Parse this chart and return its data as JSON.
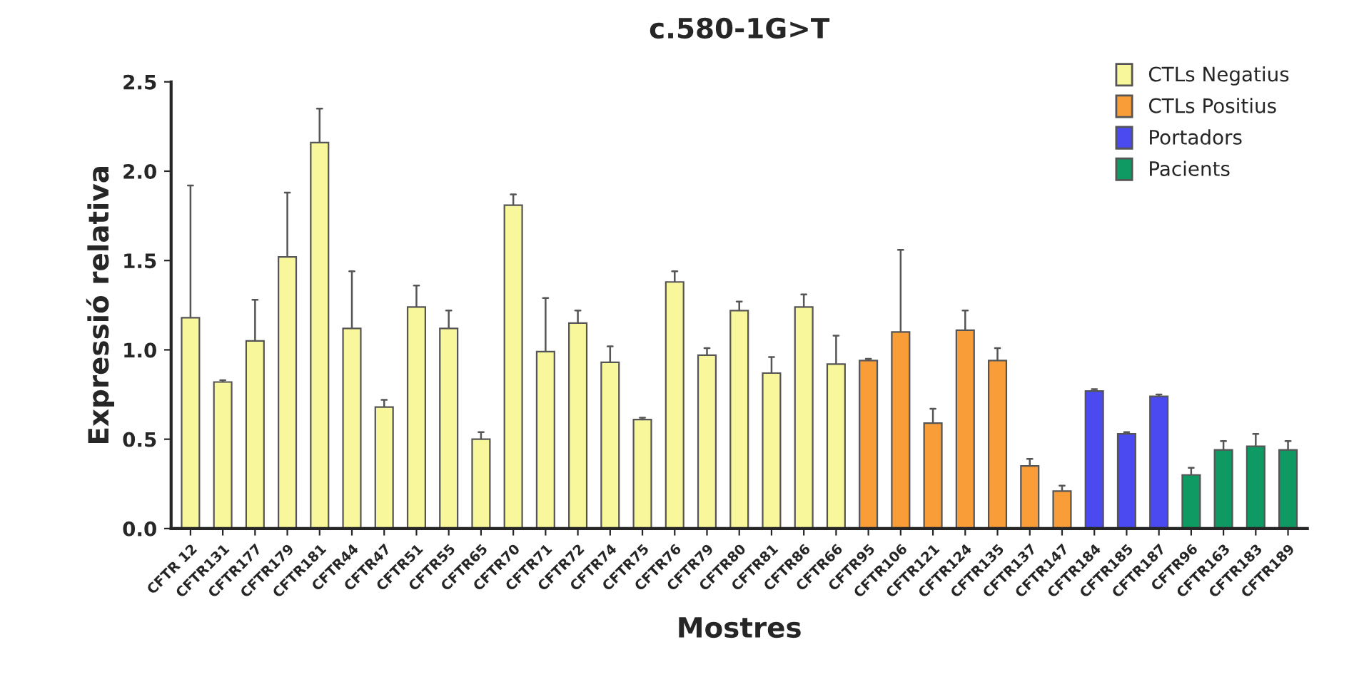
{
  "chart_data": {
    "type": "bar",
    "title": "c.580-1G>T",
    "xlabel": "Mostres",
    "ylabel": "Expressió relativa",
    "categories": [
      "CFTR 12",
      "CFTR131",
      "CFTR177",
      "CFTR179",
      "CFTR181",
      "CFTR44",
      "CFTR47",
      "CFTR51",
      "CFTR55",
      "CFTR65",
      "CFTR70",
      "CFTR71",
      "CFTR72",
      "CFTR74",
      "CFTR75",
      "CFTR76",
      "CFTR79",
      "CFTR80",
      "CFTR81",
      "CFTR86",
      "CFTR66",
      "CFTR95",
      "CFTR106",
      "CFTR121",
      "CFTR124",
      "CFTR135",
      "CFTR137",
      "CFTR147",
      "CFTR184",
      "CFTR185",
      "CFTR187",
      "CFTR96",
      "CFTR163",
      "CFTR183",
      "CFTR189"
    ],
    "series": [
      {
        "name": "CTLs Negatius",
        "color": "#f8f79c",
        "values": [
          1.18,
          0.82,
          1.05,
          1.52,
          2.16,
          1.12,
          0.68,
          1.24,
          1.12,
          0.5,
          1.81,
          0.99,
          1.15,
          0.93,
          0.61,
          1.38,
          0.97,
          1.22,
          0.87,
          1.24,
          0.92,
          null,
          null,
          null,
          null,
          null,
          null,
          null,
          null,
          null,
          null,
          null,
          null,
          null,
          null
        ],
        "errors": [
          [
            1.18,
            1.92
          ],
          [
            0.82,
            0.83
          ],
          [
            1.05,
            1.28
          ],
          [
            1.52,
            1.88
          ],
          [
            2.16,
            2.35
          ],
          [
            1.12,
            1.44
          ],
          [
            0.68,
            0.72
          ],
          [
            1.24,
            1.36
          ],
          [
            1.12,
            1.22
          ],
          [
            0.5,
            0.54
          ],
          [
            1.81,
            1.87
          ],
          [
            0.99,
            1.29
          ],
          [
            1.15,
            1.22
          ],
          [
            0.93,
            1.02
          ],
          [
            0.61,
            0.62
          ],
          [
            1.38,
            1.44
          ],
          [
            0.97,
            1.01
          ],
          [
            1.22,
            1.27
          ],
          [
            0.87,
            0.96
          ],
          [
            1.24,
            1.31
          ],
          [
            0.92,
            1.08
          ],
          null,
          null,
          null,
          null,
          null,
          null,
          null,
          null,
          null,
          null,
          null,
          null,
          null,
          null
        ]
      },
      {
        "name": "CTLs Positius",
        "color": "#f89d38",
        "values": [
          null,
          null,
          null,
          null,
          null,
          null,
          null,
          null,
          null,
          null,
          null,
          null,
          null,
          null,
          null,
          null,
          null,
          null,
          null,
          null,
          null,
          0.94,
          1.1,
          0.59,
          1.11,
          0.94,
          0.35,
          0.21,
          null,
          null,
          null,
          null,
          null,
          null,
          null
        ],
        "errors": [
          null,
          null,
          null,
          null,
          null,
          null,
          null,
          null,
          null,
          null,
          null,
          null,
          null,
          null,
          null,
          null,
          null,
          null,
          null,
          null,
          null,
          [
            0.94,
            0.95
          ],
          [
            1.1,
            1.56
          ],
          [
            0.59,
            0.67
          ],
          [
            1.11,
            1.22
          ],
          [
            0.94,
            1.01
          ],
          [
            0.35,
            0.39
          ],
          [
            0.21,
            0.24
          ],
          null,
          null,
          null,
          null,
          null,
          null,
          null
        ]
      },
      {
        "name": "Portadors",
        "color": "#4a4af0",
        "values": [
          null,
          null,
          null,
          null,
          null,
          null,
          null,
          null,
          null,
          null,
          null,
          null,
          null,
          null,
          null,
          null,
          null,
          null,
          null,
          null,
          null,
          null,
          null,
          null,
          null,
          null,
          null,
          null,
          0.77,
          0.53,
          0.74,
          null,
          null,
          null,
          null
        ],
        "errors": [
          null,
          null,
          null,
          null,
          null,
          null,
          null,
          null,
          null,
          null,
          null,
          null,
          null,
          null,
          null,
          null,
          null,
          null,
          null,
          null,
          null,
          null,
          null,
          null,
          null,
          null,
          null,
          null,
          [
            0.77,
            0.78
          ],
          [
            0.53,
            0.54
          ],
          [
            0.74,
            0.75
          ],
          null,
          null,
          null,
          null
        ]
      },
      {
        "name": "Pacients",
        "color": "#0e9a62",
        "values": [
          null,
          null,
          null,
          null,
          null,
          null,
          null,
          null,
          null,
          null,
          null,
          null,
          null,
          null,
          null,
          null,
          null,
          null,
          null,
          null,
          null,
          null,
          null,
          null,
          null,
          null,
          null,
          null,
          null,
          null,
          null,
          0.3,
          0.44,
          0.46,
          0.44
        ],
        "errors": [
          null,
          null,
          null,
          null,
          null,
          null,
          null,
          null,
          null,
          null,
          null,
          null,
          null,
          null,
          null,
          null,
          null,
          null,
          null,
          null,
          null,
          null,
          null,
          null,
          null,
          null,
          null,
          null,
          null,
          null,
          null,
          [
            0.3,
            0.34
          ],
          [
            0.44,
            0.49
          ],
          [
            0.46,
            0.53
          ],
          [
            0.44,
            0.49
          ]
        ]
      }
    ],
    "ylim": [
      0,
      2.5
    ],
    "yticks": [
      {
        "value": 0,
        "label": "0.0"
      },
      {
        "value": 0.5,
        "label": "0.5"
      },
      {
        "value": 1,
        "label": "1.0"
      },
      {
        "value": 1.5,
        "label": "1.5"
      },
      {
        "value": 2,
        "label": "2.0"
      },
      {
        "value": 2.5,
        "label": "2.5"
      }
    ],
    "grid": false,
    "legend": "top right"
  }
}
